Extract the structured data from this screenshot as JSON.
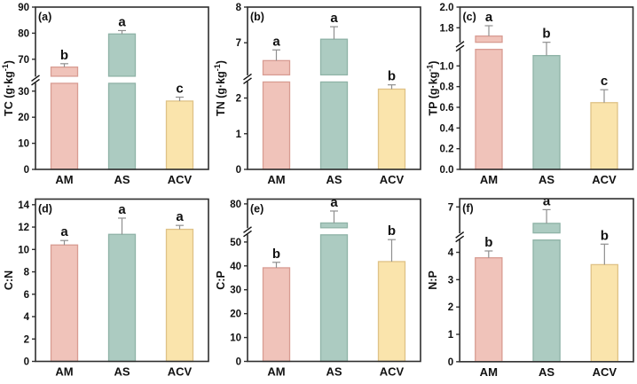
{
  "figure": {
    "description": "Six-panel bar figure of soil stoichiometry across three treatments",
    "treatments": [
      "AM",
      "AS",
      "ACV"
    ]
  },
  "style": {
    "bar_fills": [
      "#F0C3BA",
      "#ACCBC1",
      "#FAE4AC"
    ],
    "bar_strokes": [
      "#D89C92",
      "#8FB3A7",
      "#DFC287"
    ],
    "error_color": "#8f8f8f",
    "axis_color": "#2e2e2e",
    "background": "#ffffff"
  },
  "chart_data": [
    {
      "type": "bar",
      "panel_label": "(a)",
      "ylabel": "TC (g·kg⁻¹)",
      "categories": [
        "AM",
        "AS",
        "ACV"
      ],
      "values": [
        67,
        79.7,
        26.2
      ],
      "errors_upper": [
        1.3,
        1.3,
        1.5
      ],
      "sig_letters": [
        "b",
        "a",
        "c"
      ],
      "tick_values": [
        0,
        10,
        20,
        30,
        70,
        80,
        90
      ],
      "tick_labels": [
        "0",
        "10",
        "20",
        "30",
        "70",
        "80",
        "90"
      ],
      "ylim": [
        0,
        90
      ],
      "axis_break": {
        "low": 33,
        "high": 63.5
      },
      "grid": false,
      "legend": null
    },
    {
      "type": "bar",
      "panel_label": "(b)",
      "ylabel": "TN (g·kg⁻¹)",
      "categories": [
        "AM",
        "AS",
        "ACV"
      ],
      "values": [
        6.5,
        7.1,
        2.25
      ],
      "errors_upper": [
        0.3,
        0.35,
        0.12
      ],
      "sig_letters": [
        "a",
        "a",
        "b"
      ],
      "tick_values": [
        0,
        1,
        2,
        7,
        8
      ],
      "tick_labels": [
        "0",
        "1",
        "2",
        "7",
        "8"
      ],
      "ylim": [
        0,
        8
      ],
      "axis_break": {
        "low": 2.45,
        "high": 6.1
      },
      "grid": false,
      "legend": null
    },
    {
      "type": "bar",
      "panel_label": "(c)",
      "ylabel": "TP (g·kg⁻¹)",
      "categories": [
        "AM",
        "AS",
        "ACV"
      ],
      "values": [
        1.72,
        1.1,
        0.645
      ],
      "errors_upper": [
        0.1,
        0.08,
        0.125
      ],
      "sig_letters": [
        "a",
        "b",
        "c"
      ],
      "tick_values": [
        0,
        0.2,
        0.4,
        0.6,
        0.8,
        1.0,
        1.8,
        2.0
      ],
      "tick_labels": [
        "0.0",
        "0.2",
        "0.4",
        "0.6",
        "0.8",
        "1.0",
        "1.8",
        "2.0"
      ],
      "ylim": [
        0,
        2
      ],
      "axis_break": {
        "low": 1.16,
        "high": 1.66
      },
      "grid": false,
      "legend": null
    },
    {
      "type": "bar",
      "panel_label": "(d)",
      "ylabel": "C:N",
      "categories": [
        "AM",
        "AS",
        "ACV"
      ],
      "values": [
        10.4,
        11.35,
        11.8
      ],
      "errors_upper": [
        0.4,
        1.45,
        0.35
      ],
      "sig_letters": [
        "a",
        "a",
        "a"
      ],
      "tick_values": [
        0,
        2,
        4,
        6,
        8,
        10,
        12,
        14
      ],
      "tick_labels": [
        "0",
        "2",
        "4",
        "6",
        "8",
        "10",
        "12",
        "14"
      ],
      "ylim": [
        0,
        14.5
      ],
      "axis_break": null,
      "grid": false,
      "legend": null
    },
    {
      "type": "bar",
      "panel_label": "(e)",
      "ylabel": "C:P",
      "categories": [
        "AM",
        "AS",
        "ACV"
      ],
      "values": [
        39.2,
        72,
        41.8
      ],
      "errors_upper": [
        2.3,
        5,
        9.2
      ],
      "sig_letters": [
        "b",
        "a",
        "b"
      ],
      "tick_values": [
        0,
        10,
        20,
        30,
        40,
        50,
        80
      ],
      "tick_labels": [
        "0",
        "10",
        "20",
        "30",
        "40",
        "50",
        "80"
      ],
      "ylim": [
        0,
        82
      ],
      "axis_break": {
        "low": 53,
        "high": 70
      },
      "grid": false,
      "legend": null
    },
    {
      "type": "bar",
      "panel_label": "(f)",
      "ylabel": "N:P",
      "categories": [
        "AM",
        "AS",
        "ACV"
      ],
      "values": [
        3.8,
        6.4,
        3.55
      ],
      "errors_upper": [
        0.25,
        0.5,
        0.75
      ],
      "sig_letters": [
        "b",
        "a",
        "b"
      ],
      "tick_values": [
        0,
        1,
        2,
        3,
        4,
        7
      ],
      "tick_labels": [
        "0",
        "1",
        "2",
        "3",
        "4",
        "7"
      ],
      "ylim": [
        0,
        7.3
      ],
      "axis_break": {
        "low": 4.45,
        "high": 6.05
      },
      "grid": false,
      "legend": null
    }
  ]
}
